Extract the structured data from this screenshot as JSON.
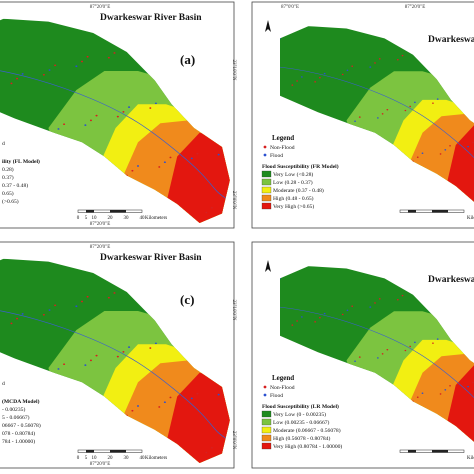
{
  "panels": [
    {
      "title": "Dwarkeswar River Basin",
      "label": "(a)",
      "side": "left",
      "top_coordinates": [
        "87°20'0\"E"
      ],
      "side_coordinates": [
        "23°10'0\"N",
        "23°0'0\"N"
      ],
      "bottom_coordinates": [
        "87°20'0\"E"
      ],
      "legend": {
        "heading": null,
        "markers": [
          "d"
        ],
        "title": "ility (FL Model)",
        "classes": [
          "0.28)",
          "0.37)",
          "0.37 - 0.48)",
          "0.65)",
          "(>0.65)"
        ]
      },
      "scale": {
        "ticks": [
          "0",
          "5",
          "10",
          "20",
          "30",
          "40"
        ],
        "unit": "Kilometers"
      }
    },
    {
      "title": "Dwarkeswar River",
      "label": null,
      "side": "right",
      "top_coordinates": [
        "87°0'0\"E",
        "87°20'0\"E"
      ],
      "side_coordinates": [],
      "bottom_coordinates": [],
      "legend": {
        "heading": "Legend",
        "markers": [
          "Non-Flood",
          "Flood"
        ],
        "title": "Flood Susceptibility (FR Model)",
        "classes": [
          "Very Low (<0.28)",
          "Low (0.28 - 0.37)",
          "Moderate (0.37 - 0.48)",
          "High (0.48 - 0.65)",
          "Very High (>0.65)"
        ]
      },
      "scale": {
        "ticks": [],
        "unit": "Kilomet"
      }
    },
    {
      "title": "Dwarkeswar River Basin",
      "label": "(c)",
      "side": "left",
      "top_coordinates": [
        "87°20'0\"E"
      ],
      "side_coordinates": [
        "23°10'0\"N",
        "23°0'0\"N"
      ],
      "bottom_coordinates": [
        "87°20'0\"E"
      ],
      "legend": {
        "heading": null,
        "markers": [
          "d"
        ],
        "title": "(MCDA Model)",
        "classes": [
          "- 0.00235)",
          "5 - 0.06667)",
          "06667 - 0.56078)",
          "078 - 0.80784)",
          "784 - 1.00000)"
        ]
      },
      "scale": {
        "ticks": [
          "0",
          "5",
          "10",
          "20",
          "30",
          "40"
        ],
        "unit": "Kilometers"
      }
    },
    {
      "title": "Dwarkeswar Rive",
      "label": null,
      "side": "right",
      "top_coordinates": [],
      "side_coordinates": [],
      "bottom_coordinates": [],
      "legend": {
        "heading": "Legend",
        "markers": [
          "Non-Flood",
          "Flood"
        ],
        "title": "Flood Susceptibility (LR Model)",
        "classes": [
          "Very Low (0 - 0.00235)",
          "Low (0.00235 - 0.06667)",
          "Moderate (0.06667 - 0.56078)",
          "High (0.56078 - 0.80784)",
          "Very High (0.80784 - 1.00000)"
        ]
      },
      "scale": {
        "ticks": [],
        "unit": "Kilometers"
      }
    }
  ]
}
